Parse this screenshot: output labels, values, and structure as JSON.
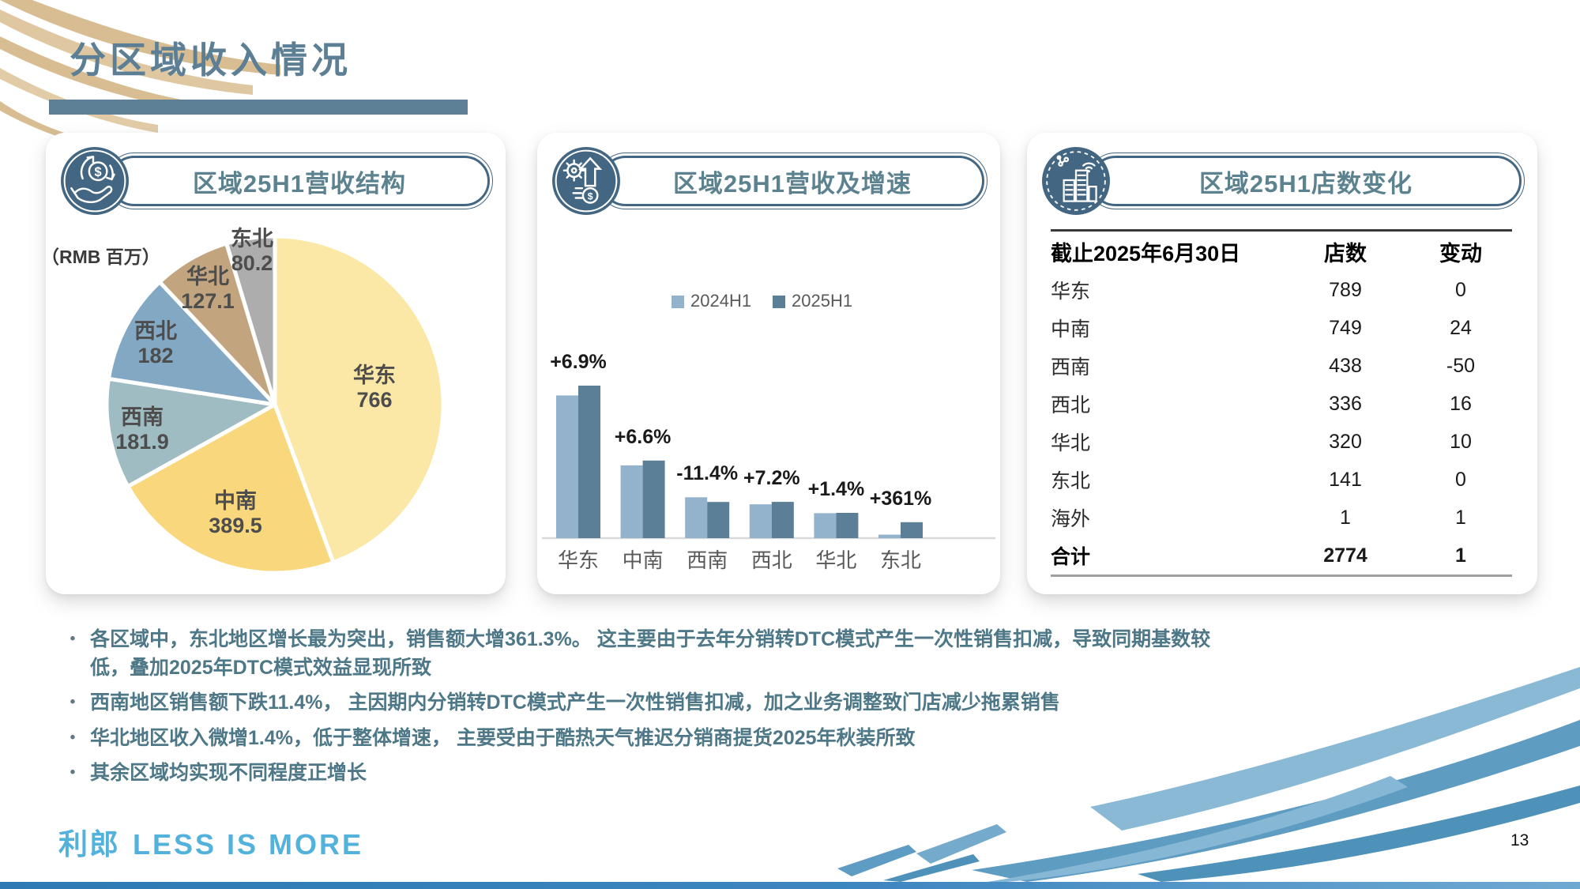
{
  "slide": {
    "title": "分区域收入情况",
    "page_number": "13",
    "logo_cjk": "利郎",
    "logo_latin": "LESS IS MORE"
  },
  "panels": {
    "pie": {
      "header": "区域25H1营收结构",
      "unit_label": "（RMB 百万）"
    },
    "bar": {
      "header": "区域25H1营收及增速"
    },
    "table": {
      "header": "区域25H1店数变化"
    }
  },
  "chart_data": [
    {
      "id": "revenue-structure-pie",
      "type": "pie",
      "title": "区域25H1营收结构",
      "unit": "RMB 百万",
      "labels": [
        "华东",
        "中南",
        "西南",
        "西北",
        "华北",
        "东北"
      ],
      "values": [
        766,
        389.5,
        181.9,
        182,
        127.1,
        80.2
      ],
      "display_values": [
        "766",
        "389.5",
        "181.9",
        "182",
        "127.1",
        "80.2"
      ],
      "colors": [
        "#FBE7A6",
        "#F9D87D",
        "#9FBCC2",
        "#82A8C4",
        "#C2A47E",
        "#ADADAD"
      ],
      "start_angle_deg": 0,
      "direction": "clockwise",
      "legend_position": "none"
    },
    {
      "id": "revenue-growth-bar",
      "type": "bar",
      "title": "区域25H1营收及增速",
      "categories": [
        "华东",
        "中南",
        "西南",
        "西北",
        "华北",
        "东北"
      ],
      "series": [
        {
          "name": "2024H1",
          "color": "#92B3CB",
          "values": [
            716.6,
            365.4,
            205.3,
            169.8,
            125.3,
            17.4
          ]
        },
        {
          "name": "2025H1",
          "color": "#5B7F97",
          "values": [
            766,
            389.5,
            181.9,
            182,
            127.1,
            80.2
          ]
        }
      ],
      "growth_labels": [
        "+6.9%",
        "+6.6%",
        "-11.4%",
        "+7.2%",
        "+1.4%",
        "+361%"
      ],
      "legend_position": "top-right",
      "grid": false,
      "ylim": [
        0,
        800
      ]
    },
    {
      "id": "store-count-table",
      "type": "table",
      "title": "区域25H1店数变化",
      "columns": [
        "截止2025年6月30日",
        "店数",
        "变动"
      ],
      "rows": [
        [
          "华东",
          "789",
          "0"
        ],
        [
          "中南",
          "749",
          "24"
        ],
        [
          "西南",
          "438",
          "-50"
        ],
        [
          "西北",
          "336",
          "16"
        ],
        [
          "华北",
          "320",
          "10"
        ],
        [
          "东北",
          "141",
          "0"
        ],
        [
          "海外",
          "1",
          "1"
        ],
        [
          "合计",
          "2774",
          "1"
        ]
      ],
      "total_row_index": 7
    }
  ],
  "bullets": [
    "各区域中，东北地区增长最为突出，销售额大增361.3%。 这主要由于去年分销转DTC模式产生一次性销售扣减，导致同期基数较低，叠加2025年DTC模式效益显现所致",
    "西南地区销售额下跌11.4%， 主因期内分销转DTC模式产生一次性销售扣减，加之业务调整致门店减少拖累销售",
    "华北地区收入微增1.4%，低于整体增速， 主要受由于酷热天气推迟分销商提货2025年秋装所致",
    "其余区域均实现不同程度正增长"
  ],
  "colors": {
    "accent_slate": "#436782",
    "header_text": "#5C8290",
    "title": "#5C7F95",
    "bullet_text": "#4E7887",
    "logo_blue": "#53B2DB",
    "gold_deco": "#D8BD92",
    "blue_deco": "#5E9CC2",
    "bar_2024": "#92B3CB",
    "bar_2025": "#5B7F97"
  }
}
